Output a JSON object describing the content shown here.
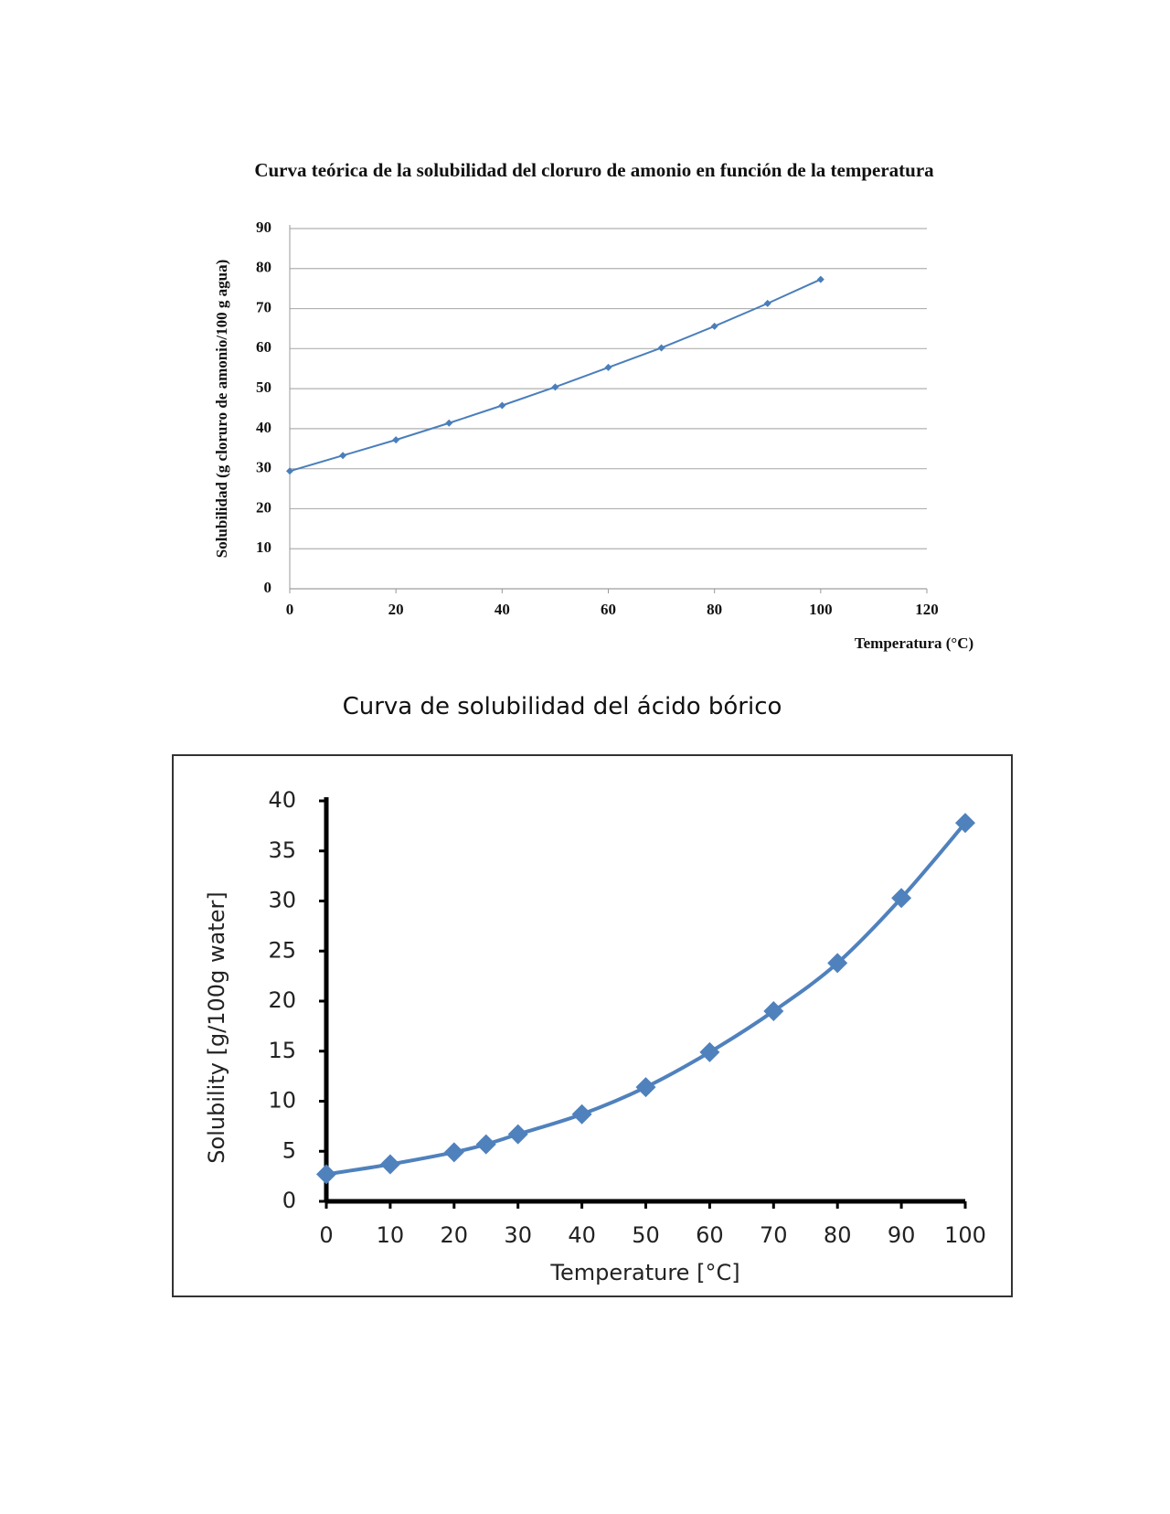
{
  "chart_data": [
    {
      "type": "line",
      "title": "Curva teórica de la solubilidad del cloruro de amonio en función de la temperatura",
      "x_label": "Temperatura (°C)",
      "y_label": "Solubilidad (g  cloruro de amonio/100 g agua)",
      "x": [
        0,
        10,
        20,
        30,
        40,
        50,
        60,
        70,
        80,
        90,
        100
      ],
      "series": [
        {
          "color": "#4a7ebb",
          "values": [
            29.4,
            33.3,
            37.2,
            41.4,
            45.8,
            50.4,
            55.3,
            60.2,
            65.6,
            71.3,
            77.3
          ]
        }
      ],
      "xlim": [
        0,
        120
      ],
      "xticks": [
        0,
        20,
        40,
        60,
        80,
        100,
        120
      ],
      "ylim": [
        0,
        90
      ],
      "yticks": [
        0,
        10,
        20,
        30,
        40,
        50,
        60,
        70,
        80,
        90
      ],
      "grid": true
    },
    {
      "type": "line",
      "title": "Curva de solubilidad del ácido bórico",
      "x_label": "Temperature [°C]",
      "y_label": "Solubility [g/100g water]",
      "x": [
        0,
        10,
        20,
        25,
        30,
        40,
        50,
        60,
        70,
        80,
        90,
        100
      ],
      "series": [
        {
          "color": "#4f81bd",
          "values": [
            2.7,
            3.7,
            4.9,
            5.7,
            6.7,
            8.7,
            11.4,
            14.9,
            19.0,
            23.8,
            30.3,
            37.8
          ]
        }
      ],
      "xlim": [
        0,
        100
      ],
      "xticks": [
        0,
        10,
        20,
        30,
        40,
        50,
        60,
        70,
        80,
        90,
        100
      ],
      "ylim": [
        0,
        40
      ],
      "yticks": [
        0,
        5,
        10,
        15,
        20,
        25,
        30,
        35,
        40
      ],
      "grid": false
    }
  ]
}
